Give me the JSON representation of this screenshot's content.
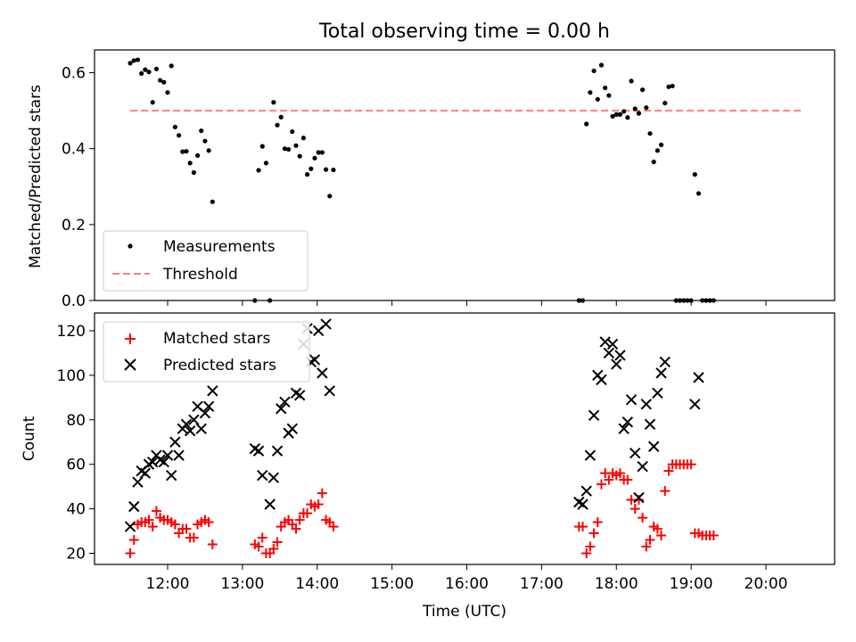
{
  "figure": {
    "title": "Total observing time = 0.00 h"
  },
  "chart_data": [
    {
      "type": "scatter",
      "ylabel": "Matched/Predicted stars",
      "xlabel": "",
      "ylim": [
        0,
        0.66
      ],
      "yticks": [
        0.0,
        0.2,
        0.4,
        0.6
      ],
      "ytick_labels": [
        "0.0",
        "0.2",
        "0.4",
        "0.6"
      ],
      "legend_position": "lower-left",
      "legend": [
        "Measurements",
        "Threshold"
      ],
      "threshold": {
        "name": "Threshold",
        "value": 0.5,
        "x_start": "11:30",
        "x_end": "20:30",
        "color": "#ff7f7f"
      },
      "series": [
        {
          "name": "Measurements",
          "color": "#000000",
          "points": [
            [
              "11:30",
              0.625
            ],
            [
              "11:33",
              0.632
            ],
            [
              "11:36",
              0.634
            ],
            [
              "11:39",
              0.598
            ],
            [
              "11:42",
              0.608
            ],
            [
              "11:45",
              0.602
            ],
            [
              "11:48",
              0.522
            ],
            [
              "11:51",
              0.61
            ],
            [
              "11:54",
              0.58
            ],
            [
              "11:57",
              0.575
            ],
            [
              "12:00",
              0.548
            ],
            [
              "12:03",
              0.618
            ],
            [
              "12:06",
              0.457
            ],
            [
              "12:09",
              0.435
            ],
            [
              "12:12",
              0.392
            ],
            [
              "12:15",
              0.393
            ],
            [
              "12:18",
              0.362
            ],
            [
              "12:21",
              0.337
            ],
            [
              "12:24",
              0.382
            ],
            [
              "12:27",
              0.447
            ],
            [
              "12:30",
              0.42
            ],
            [
              "12:33",
              0.395
            ],
            [
              "12:36",
              0.26
            ],
            [
              "13:10",
              0.0
            ],
            [
              "13:13",
              0.343
            ],
            [
              "13:16",
              0.406
            ],
            [
              "13:19",
              0.362
            ],
            [
              "13:22",
              0.0
            ],
            [
              "13:25",
              0.522
            ],
            [
              "13:28",
              0.462
            ],
            [
              "13:31",
              0.483
            ],
            [
              "13:34",
              0.4
            ],
            [
              "13:37",
              0.398
            ],
            [
              "13:40",
              0.445
            ],
            [
              "13:43",
              0.408
            ],
            [
              "13:46",
              0.38
            ],
            [
              "13:49",
              0.428
            ],
            [
              "13:52",
              0.332
            ],
            [
              "13:55",
              0.347
            ],
            [
              "13:58",
              0.375
            ],
            [
              "14:01",
              0.39
            ],
            [
              "14:04",
              0.39
            ],
            [
              "14:07",
              0.345
            ],
            [
              "14:10",
              0.275
            ],
            [
              "14:13",
              0.344
            ],
            [
              "17:30",
              0.0
            ],
            [
              "17:33",
              0.0
            ],
            [
              "17:36",
              0.465
            ],
            [
              "17:39",
              0.548
            ],
            [
              "17:42",
              0.605
            ],
            [
              "17:45",
              0.53
            ],
            [
              "17:48",
              0.62
            ],
            [
              "17:51",
              0.56
            ],
            [
              "17:54",
              0.54
            ],
            [
              "17:57",
              0.485
            ],
            [
              "18:00",
              0.49
            ],
            [
              "18:03",
              0.49
            ],
            [
              "18:06",
              0.498
            ],
            [
              "18:09",
              0.482
            ],
            [
              "18:12",
              0.578
            ],
            [
              "18:15",
              0.505
            ],
            [
              "18:18",
              0.493
            ],
            [
              "18:21",
              0.555
            ],
            [
              "18:24",
              0.508
            ],
            [
              "18:27",
              0.44
            ],
            [
              "18:30",
              0.365
            ],
            [
              "18:33",
              0.395
            ],
            [
              "18:36",
              0.41
            ],
            [
              "18:39",
              0.52
            ],
            [
              "18:42",
              0.563
            ],
            [
              "18:45",
              0.565
            ],
            [
              "18:48",
              0.0
            ],
            [
              "18:51",
              0.0
            ],
            [
              "18:54",
              0.0
            ],
            [
              "18:57",
              0.0
            ],
            [
              "19:00",
              0.0
            ],
            [
              "19:03",
              0.332
            ],
            [
              "19:06",
              0.282
            ],
            [
              "19:09",
              0.0
            ],
            [
              "19:12",
              0.0
            ],
            [
              "19:15",
              0.0
            ],
            [
              "19:18",
              0.0
            ]
          ]
        }
      ]
    },
    {
      "type": "scatter",
      "ylabel": "Count",
      "xlabel": "Time (UTC)",
      "ylim": [
        15,
        128
      ],
      "yticks": [
        20,
        40,
        60,
        80,
        100,
        120
      ],
      "ytick_labels": [
        "20",
        "40",
        "60",
        "80",
        "100",
        "120"
      ],
      "xlim": [
        "11:00",
        "21:00"
      ],
      "xticks": [
        "12:00",
        "13:00",
        "14:00",
        "15:00",
        "16:00",
        "17:00",
        "18:00",
        "19:00",
        "20:00"
      ],
      "xtick_labels": [
        "12:00",
        "13:00",
        "14:00",
        "15:00",
        "16:00",
        "17:00",
        "18:00",
        "19:00",
        "20:00"
      ],
      "legend_position": "upper-left",
      "legend": [
        "Matched stars",
        "Predicted stars"
      ],
      "series": [
        {
          "name": "Matched stars",
          "marker": "plus",
          "color": "#ff0000",
          "points": [
            [
              "11:30",
              20
            ],
            [
              "11:33",
              26
            ],
            [
              "11:36",
              33
            ],
            [
              "11:39",
              34
            ],
            [
              "11:42",
              34
            ],
            [
              "11:45",
              35
            ],
            [
              "11:48",
              32
            ],
            [
              "11:51",
              39
            ],
            [
              "11:54",
              36
            ],
            [
              "11:57",
              35
            ],
            [
              "12:00",
              35
            ],
            [
              "12:03",
              34
            ],
            [
              "12:06",
              33
            ],
            [
              "12:09",
              29
            ],
            [
              "12:12",
              31
            ],
            [
              "12:15",
              31
            ],
            [
              "12:18",
              27
            ],
            [
              "12:21",
              27
            ],
            [
              "12:24",
              33
            ],
            [
              "12:27",
              34
            ],
            [
              "12:30",
              35
            ],
            [
              "12:33",
              34
            ],
            [
              "12:36",
              24
            ],
            [
              "13:10",
              24
            ],
            [
              "13:13",
              23
            ],
            [
              "13:16",
              27
            ],
            [
              "13:19",
              20
            ],
            [
              "13:22",
              20
            ],
            [
              "13:25",
              22
            ],
            [
              "13:28",
              25
            ],
            [
              "13:31",
              32
            ],
            [
              "13:34",
              34
            ],
            [
              "13:37",
              35
            ],
            [
              "13:40",
              33
            ],
            [
              "13:43",
              31
            ],
            [
              "13:46",
              35
            ],
            [
              "13:49",
              38
            ],
            [
              "13:52",
              38
            ],
            [
              "13:55",
              42
            ],
            [
              "13:58",
              41
            ],
            [
              "14:01",
              42
            ],
            [
              "14:04",
              47
            ],
            [
              "14:07",
              35
            ],
            [
              "14:10",
              34
            ],
            [
              "14:13",
              32
            ],
            [
              "17:30",
              32
            ],
            [
              "17:33",
              32
            ],
            [
              "17:36",
              20
            ],
            [
              "17:39",
              23
            ],
            [
              "17:42",
              29
            ],
            [
              "17:45",
              34
            ],
            [
              "17:48",
              51
            ],
            [
              "17:51",
              56
            ],
            [
              "17:54",
              53
            ],
            [
              "17:57",
              56
            ],
            [
              "18:00",
              55
            ],
            [
              "18:03",
              56
            ],
            [
              "18:06",
              53
            ],
            [
              "18:09",
              53
            ],
            [
              "18:12",
              44
            ],
            [
              "18:15",
              40
            ],
            [
              "18:18",
              44
            ],
            [
              "18:21",
              36
            ],
            [
              "18:24",
              23
            ],
            [
              "18:27",
              26
            ],
            [
              "18:30",
              32
            ],
            [
              "18:33",
              31
            ],
            [
              "18:36",
              28
            ],
            [
              "18:39",
              48
            ],
            [
              "18:42",
              57
            ],
            [
              "18:45",
              60
            ],
            [
              "18:48",
              60
            ],
            [
              "18:51",
              60
            ],
            [
              "18:54",
              60
            ],
            [
              "18:57",
              60
            ],
            [
              "19:00",
              60
            ],
            [
              "19:03",
              29
            ],
            [
              "19:06",
              29
            ],
            [
              "19:09",
              28
            ],
            [
              "19:12",
              28
            ],
            [
              "19:15",
              28
            ],
            [
              "19:18",
              28
            ]
          ]
        },
        {
          "name": "Predicted stars",
          "marker": "x",
          "color": "#000000",
          "points": [
            [
              "11:30",
              32
            ],
            [
              "11:33",
              41
            ],
            [
              "11:36",
              52
            ],
            [
              "11:39",
              57
            ],
            [
              "11:42",
              56
            ],
            [
              "11:45",
              60
            ],
            [
              "11:48",
              61
            ],
            [
              "11:51",
              64
            ],
            [
              "11:54",
              62
            ],
            [
              "11:57",
              61
            ],
            [
              "12:00",
              64
            ],
            [
              "12:03",
              55
            ],
            [
              "12:06",
              70
            ],
            [
              "12:09",
              64
            ],
            [
              "12:12",
              76
            ],
            [
              "12:15",
              78
            ],
            [
              "12:18",
              75
            ],
            [
              "12:21",
              80
            ],
            [
              "12:24",
              86
            ],
            [
              "12:27",
              76
            ],
            [
              "12:30",
              83
            ],
            [
              "12:33",
              86
            ],
            [
              "12:36",
              93
            ],
            [
              "13:10",
              67
            ],
            [
              "13:13",
              66
            ],
            [
              "13:16",
              55
            ],
            [
              "13:22",
              42
            ],
            [
              "13:25",
              54
            ],
            [
              "13:28",
              66
            ],
            [
              "13:31",
              85
            ],
            [
              "13:34",
              88
            ],
            [
              "13:37",
              74
            ],
            [
              "13:40",
              76
            ],
            [
              "13:43",
              92
            ],
            [
              "13:46",
              91
            ],
            [
              "13:49",
              114
            ],
            [
              "13:52",
              121
            ],
            [
              "13:55",
              106
            ],
            [
              "13:58",
              107
            ],
            [
              "14:01",
              120
            ],
            [
              "14:04",
              101
            ],
            [
              "14:07",
              123
            ],
            [
              "14:10",
              93
            ],
            [
              "17:30",
              43
            ],
            [
              "17:33",
              42
            ],
            [
              "17:36",
              48
            ],
            [
              "17:39",
              64
            ],
            [
              "17:42",
              82
            ],
            [
              "17:45",
              100
            ],
            [
              "17:48",
              98
            ],
            [
              "17:51",
              115
            ],
            [
              "17:54",
              110
            ],
            [
              "17:57",
              114
            ],
            [
              "18:00",
              105
            ],
            [
              "18:03",
              109
            ],
            [
              "18:06",
              76
            ],
            [
              "18:09",
              79
            ],
            [
              "18:12",
              89
            ],
            [
              "18:15",
              65
            ],
            [
              "18:18",
              45
            ],
            [
              "18:21",
              59
            ],
            [
              "18:24",
              87
            ],
            [
              "18:27",
              78
            ],
            [
              "18:30",
              68
            ],
            [
              "18:33",
              92
            ],
            [
              "18:36",
              101
            ],
            [
              "18:39",
              106
            ],
            [
              "19:03",
              87
            ],
            [
              "19:06",
              99
            ]
          ]
        }
      ]
    }
  ]
}
